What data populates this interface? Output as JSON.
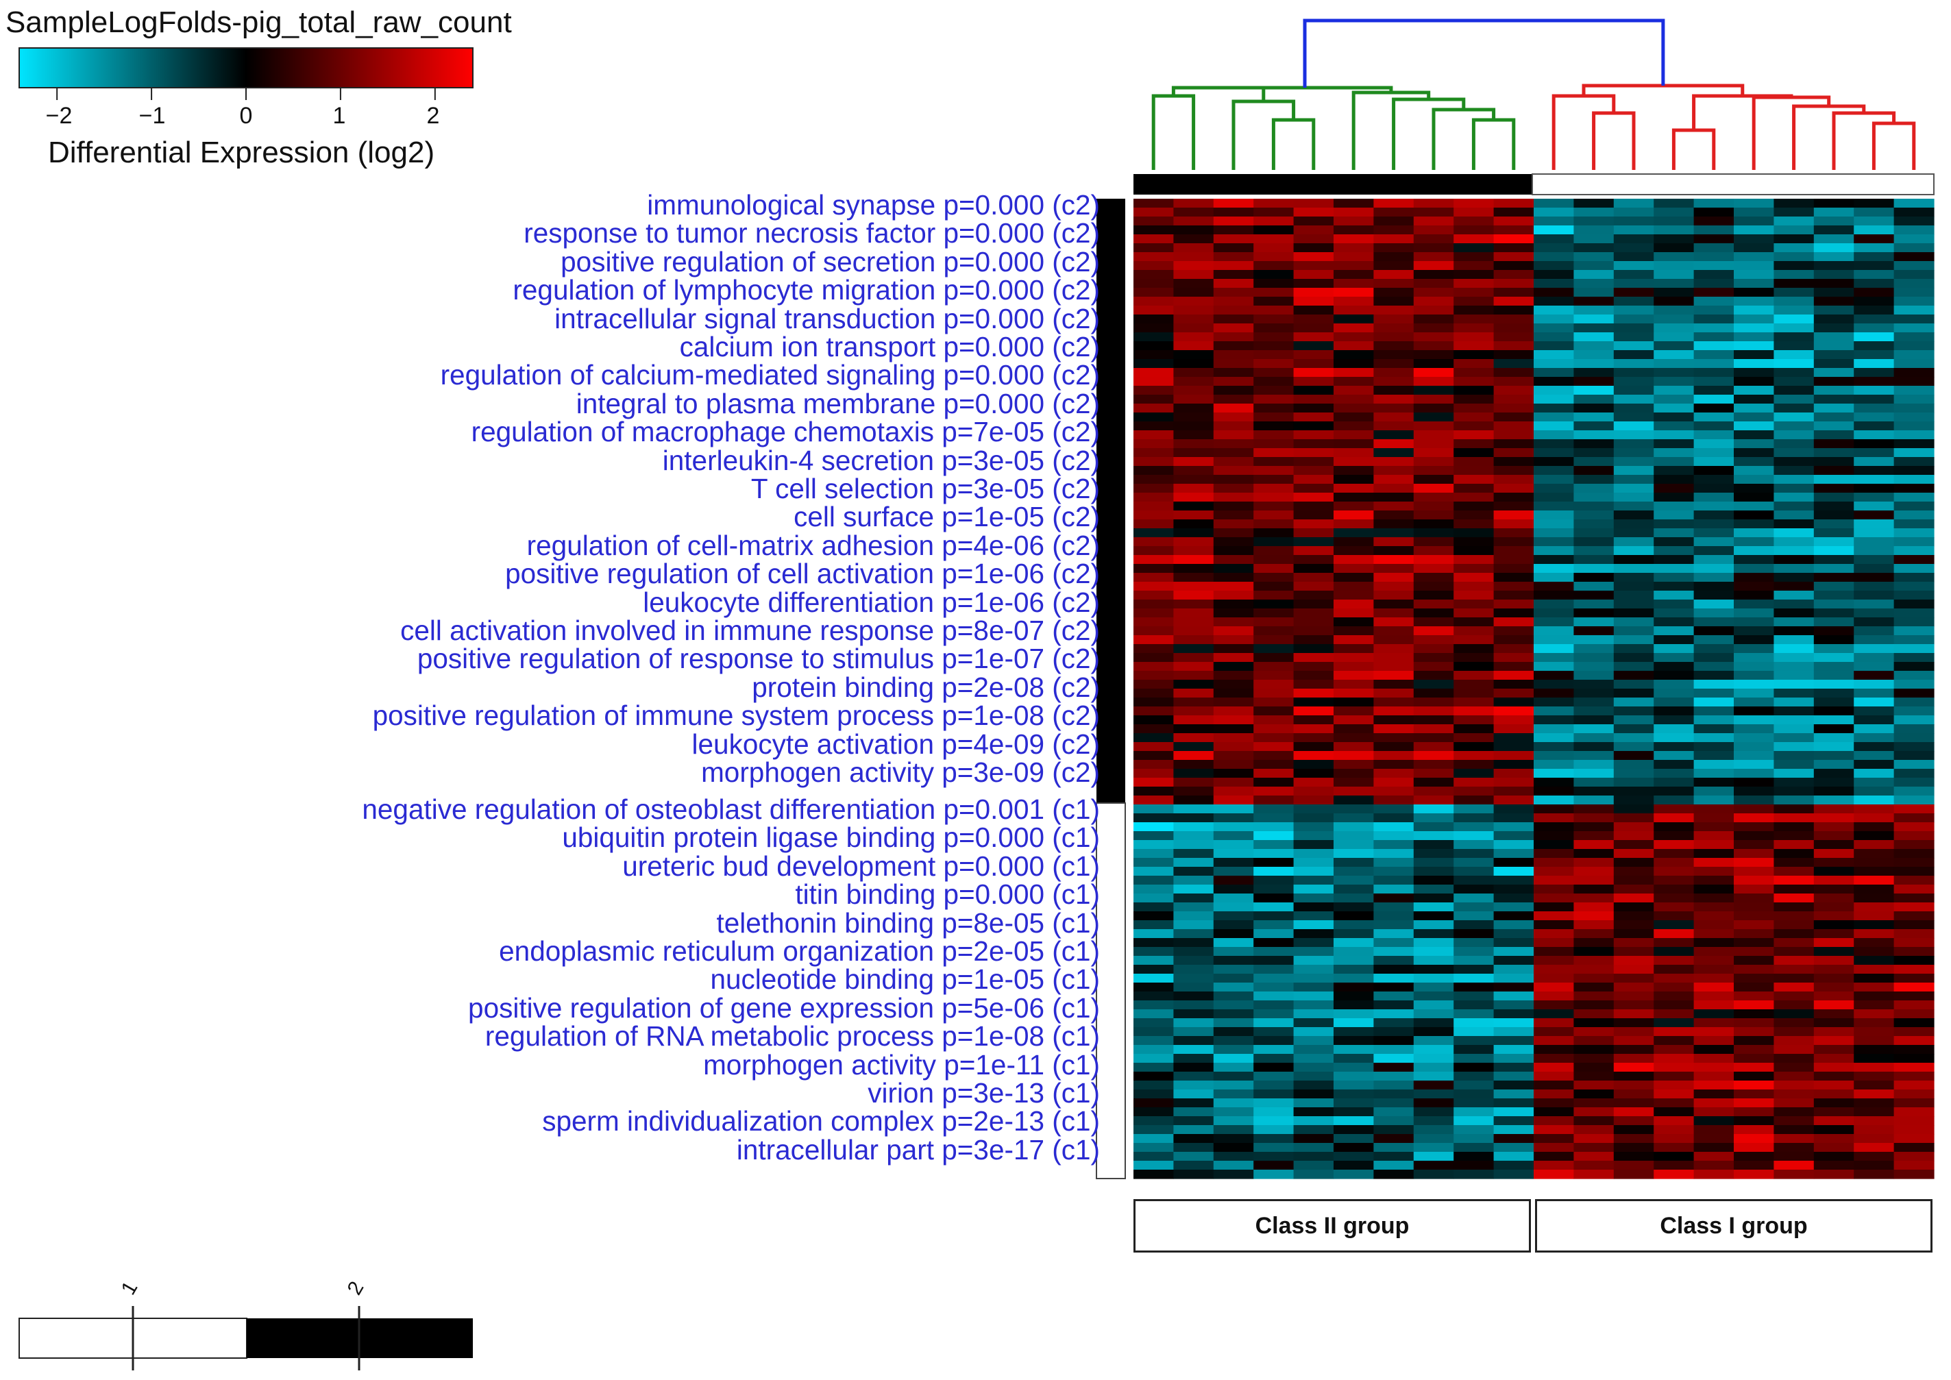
{
  "chart_data": {
    "type": "heatmap",
    "title": "SampleLogFolds-pig_total_raw_count",
    "colorbar": {
      "label": "Differential Expression (log2)",
      "ticks": [
        "−2",
        "−1",
        "0",
        "1",
        "2"
      ],
      "tick_values": [
        -2,
        -1,
        0,
        1,
        2
      ],
      "range": [
        -2.4,
        2.4
      ],
      "colors": {
        "low": "#00e5ff",
        "mid": "#000000",
        "high": "#ff0000"
      }
    },
    "row_labels": [
      "immunological synapse p=0.000 (c2)",
      "response to tumor necrosis factor p=0.000 (c2)",
      "positive regulation of secretion p=0.000 (c2)",
      "regulation of lymphocyte migration p=0.000 (c2)",
      "intracellular signal transduction p=0.000 (c2)",
      "calcium ion transport p=0.000 (c2)",
      "regulation of calcium-mediated signaling p=0.000 (c2)",
      "integral to plasma membrane p=0.000 (c2)",
      "regulation of macrophage chemotaxis p=7e-05 (c2)",
      "interleukin-4 secretion p=3e-05 (c2)",
      "T cell selection p=3e-05 (c2)",
      "cell surface p=1e-05 (c2)",
      "regulation of cell-matrix adhesion p=4e-06 (c2)",
      "positive regulation of cell activation p=1e-06 (c2)",
      "leukocyte differentiation p=1e-06 (c2)",
      "cell activation involved in immune response p=8e-07 (c2)",
      "positive regulation of response to stimulus p=1e-07 (c2)",
      "protein binding p=2e-08 (c2)",
      "positive regulation of immune system process p=1e-08 (c2)",
      "leukocyte activation p=4e-09 (c2)",
      "morphogen activity p=3e-09 (c2)",
      "negative regulation of osteoblast differentiation p=0.001 (c1)",
      "ubiquitin protein ligase binding p=0.000 (c1)",
      "ureteric bud development p=0.000 (c1)",
      "titin binding p=0.000 (c1)",
      "telethonin binding p=8e-05 (c1)",
      "endoplasmic reticulum organization p=2e-05 (c1)",
      "nucleotide binding p=1e-05 (c1)",
      "positive regulation of gene expression p=5e-06 (c1)",
      "regulation of RNA metabolic process p=1e-08 (c1)",
      "morphogen activity p=1e-11 (c1)",
      "virion p=3e-13 (c1)",
      "sperm individualization complex p=2e-13 (c1)",
      "intracellular part p=3e-17 (c1)"
    ],
    "row_clusters": {
      "c2_count": 21,
      "c1_count": 13
    },
    "column_groups": [
      {
        "name": "Class II group",
        "samples": 10,
        "dendrogram_color": "#1f8a1f"
      },
      {
        "name": "Class I group",
        "samples": 10,
        "dendrogram_color": "#e02020"
      }
    ],
    "root_link_color": "#1a2ee0",
    "approx_mean_log2": {
      "c2_genes": {
        "Class II group": 1.0,
        "Class I group": -0.9
      },
      "c1_genes": {
        "Class II group": -1.0,
        "Class I group": 1.0
      }
    },
    "cluster_legend": {
      "ticks": [
        "1",
        "2"
      ],
      "tick_values": [
        1,
        2
      ],
      "colors": [
        "#ffffff",
        "#000000"
      ]
    }
  }
}
